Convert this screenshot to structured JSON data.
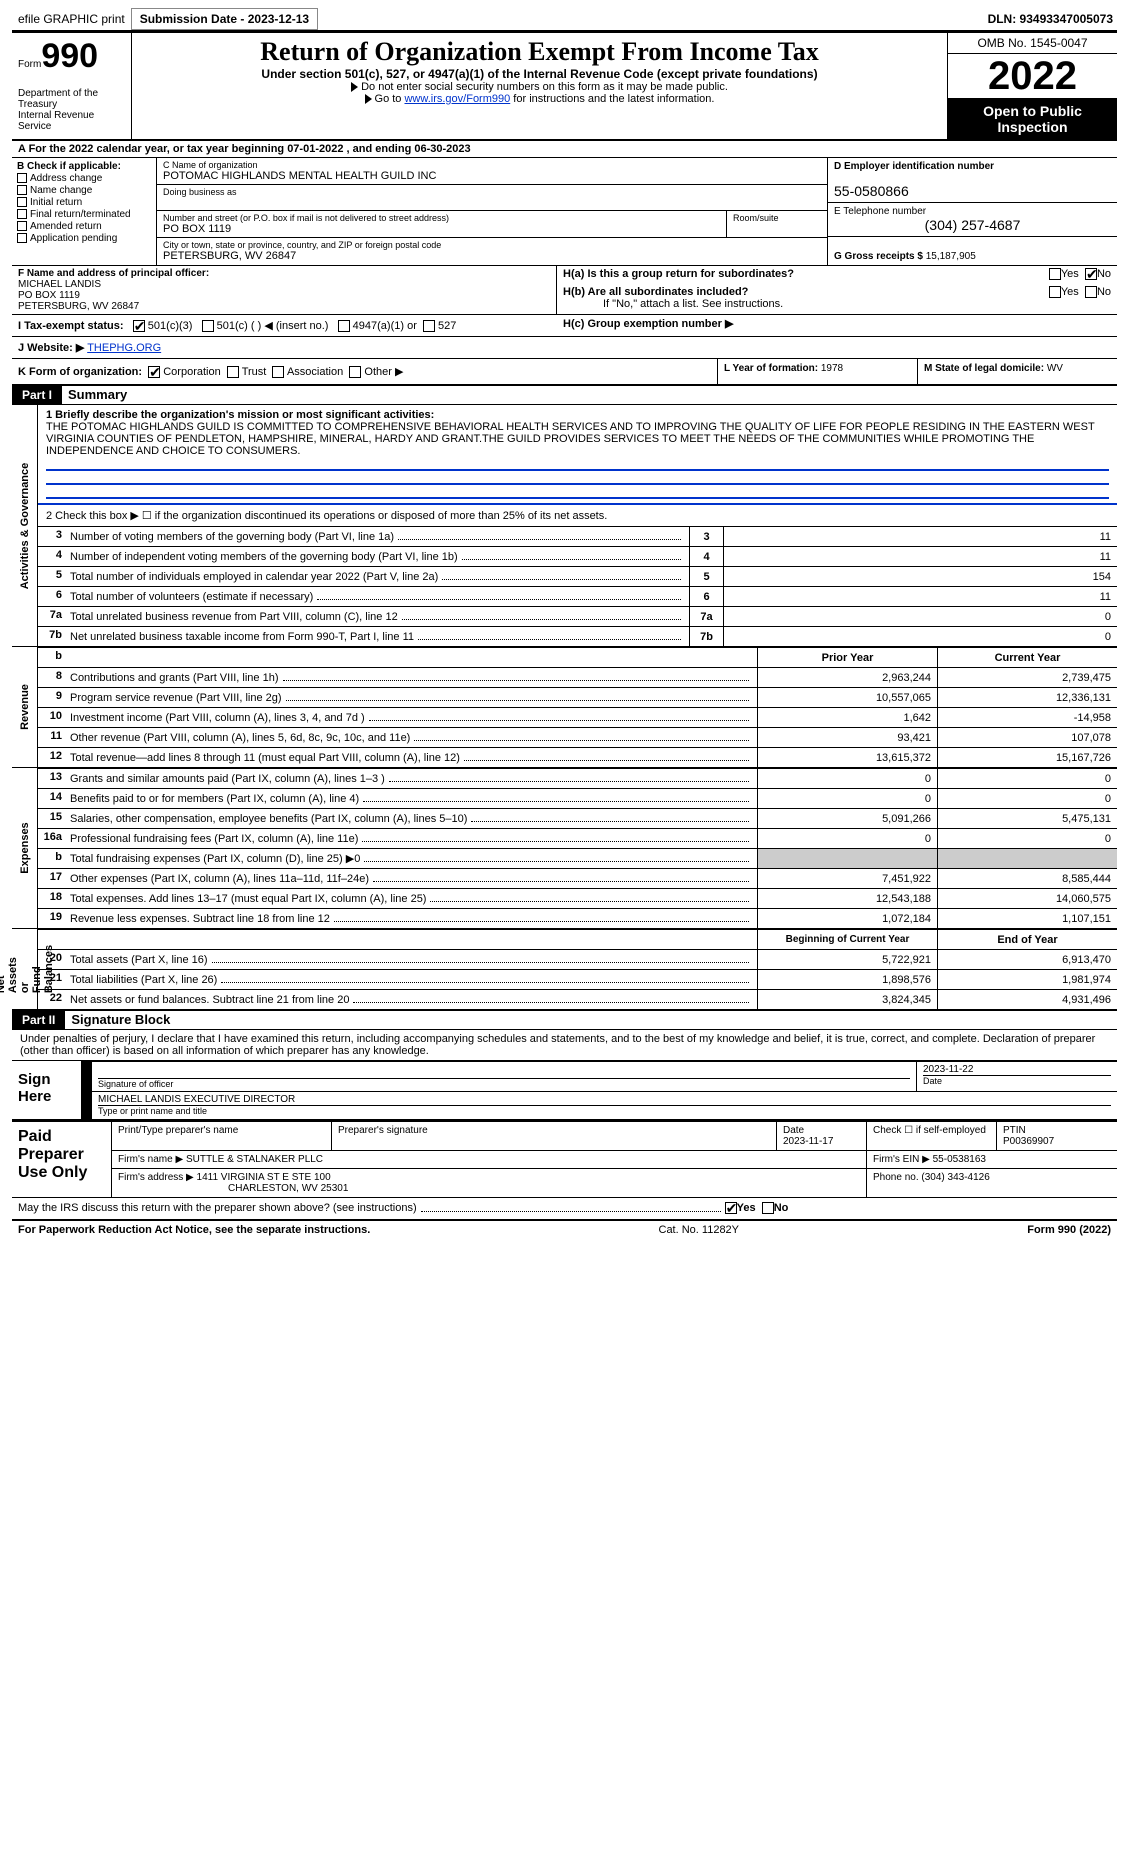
{
  "topbar": {
    "efile": "efile GRAPHIC print",
    "submission": "Submission Date - 2023-12-13",
    "dln": "DLN: 93493347005073"
  },
  "header": {
    "form_label": "Form",
    "form_num": "990",
    "title": "Return of Organization Exempt From Income Tax",
    "subtitle": "Under section 501(c), 527, or 4947(a)(1) of the Internal Revenue Code (except private foundations)",
    "note1": "Do not enter social security numbers on this form as it may be made public.",
    "note2_pre": "Go to ",
    "note2_link": "www.irs.gov/Form990",
    "note2_post": " for instructions and the latest information.",
    "dept": "Department of the Treasury\nInternal Revenue Service",
    "omb": "OMB No. 1545-0047",
    "year": "2022",
    "open": "Open to Public Inspection"
  },
  "rowA": "A For the 2022 calendar year, or tax year beginning 07-01-2022    , and ending 06-30-2023",
  "checkB": {
    "label": "B Check if applicable:",
    "items": [
      "Address change",
      "Name change",
      "Initial return",
      "Final return/terminated",
      "Amended return",
      "Application pending"
    ]
  },
  "blockC": {
    "name_lab": "C Name of organization",
    "name": "POTOMAC HIGHLANDS MENTAL HEALTH GUILD INC",
    "dba_lab": "Doing business as",
    "dba": "",
    "addr_lab": "Number and street (or P.O. box if mail is not delivered to street address)",
    "room_lab": "Room/suite",
    "addr": "PO BOX 1119",
    "city_lab": "City or town, state or province, country, and ZIP or foreign postal code",
    "city": "PETERSBURG, WV  26847"
  },
  "blockD": {
    "ein_lab": "D Employer identification number",
    "ein": "55-0580866",
    "tel_lab": "E Telephone number",
    "tel": "(304) 257-4687",
    "gross_lab": "G Gross receipts $",
    "gross": "15,187,905"
  },
  "blockF": {
    "lab": "F  Name and address of principal officer:",
    "name": "MICHAEL LANDIS",
    "addr1": "PO BOX 1119",
    "addr2": "PETERSBURG, WV  26847"
  },
  "blockH": {
    "ha": "H(a)  Is this a group return for subordinates?",
    "hb": "H(b)  Are all subordinates included?",
    "hb_note": "If \"No,\" attach a list. See instructions.",
    "hc": "H(c)  Group exemption number ▶",
    "yes": "Yes",
    "no": "No"
  },
  "rowI": {
    "lab": "I  Tax-exempt status:",
    "o1": "501(c)(3)",
    "o2": "501(c) (  ) ◀ (insert no.)",
    "o3": "4947(a)(1) or",
    "o4": "527"
  },
  "rowJ": {
    "lab": "J  Website: ▶",
    "val": "THEPHG.ORG"
  },
  "rowK": {
    "lab": "K Form of organization:",
    "o1": "Corporation",
    "o2": "Trust",
    "o3": "Association",
    "o4": "Other ▶"
  },
  "rowL": {
    "lab": "L Year of formation:",
    "val": "1978"
  },
  "rowM": {
    "lab": "M State of legal domicile:",
    "val": "WV"
  },
  "part1": {
    "tab": "Part I",
    "title": "Summary"
  },
  "mission": {
    "lab": "1  Briefly describe the organization's mission or most significant activities:",
    "text": "THE POTOMAC HIGHLANDS GUILD IS COMMITTED TO COMPREHENSIVE BEHAVIORAL HEALTH SERVICES AND TO IMPROVING THE QUALITY OF LIFE FOR PEOPLE RESIDING IN THE EASTERN WEST VIRGINIA COUNTIES OF PENDLETON, HAMPSHIRE, MINERAL, HARDY AND GRANT.THE GUILD PROVIDES SERVICES TO MEET THE NEEDS OF THE COMMUNITIES WHILE PROMOTING THE INDEPENDENCE AND CHOICE TO CONSUMERS."
  },
  "line2": "2    Check this box ▶ ☐  if the organization discontinued its operations or disposed of more than 25% of its net assets.",
  "gov_lines": [
    {
      "n": "3",
      "t": "Number of voting members of the governing body (Part VI, line 1a)",
      "box": "3",
      "v": "11"
    },
    {
      "n": "4",
      "t": "Number of independent voting members of the governing body (Part VI, line 1b)",
      "box": "4",
      "v": "11"
    },
    {
      "n": "5",
      "t": "Total number of individuals employed in calendar year 2022 (Part V, line 2a)",
      "box": "5",
      "v": "154"
    },
    {
      "n": "6",
      "t": "Total number of volunteers (estimate if necessary)",
      "box": "6",
      "v": "11"
    },
    {
      "n": "7a",
      "t": "Total unrelated business revenue from Part VIII, column (C), line 12",
      "box": "7a",
      "v": "0"
    },
    {
      "n": "7b",
      "t": "Net unrelated business taxable income from Form 990-T, Part I, line 11",
      "box": "7b",
      "v": "0"
    }
  ],
  "col_hdr": {
    "b": "b",
    "py": "Prior Year",
    "cy": "Current Year"
  },
  "rev_lines": [
    {
      "n": "8",
      "t": "Contributions and grants (Part VIII, line 1h)",
      "py": "2,963,244",
      "cy": "2,739,475"
    },
    {
      "n": "9",
      "t": "Program service revenue (Part VIII, line 2g)",
      "py": "10,557,065",
      "cy": "12,336,131"
    },
    {
      "n": "10",
      "t": "Investment income (Part VIII, column (A), lines 3, 4, and 7d )",
      "py": "1,642",
      "cy": "-14,958"
    },
    {
      "n": "11",
      "t": "Other revenue (Part VIII, column (A), lines 5, 6d, 8c, 9c, 10c, and 11e)",
      "py": "93,421",
      "cy": "107,078"
    },
    {
      "n": "12",
      "t": "Total revenue—add lines 8 through 11 (must equal Part VIII, column (A), line 12)",
      "py": "13,615,372",
      "cy": "15,167,726"
    }
  ],
  "exp_lines": [
    {
      "n": "13",
      "t": "Grants and similar amounts paid (Part IX, column (A), lines 1–3 )",
      "py": "0",
      "cy": "0"
    },
    {
      "n": "14",
      "t": "Benefits paid to or for members (Part IX, column (A), line 4)",
      "py": "0",
      "cy": "0"
    },
    {
      "n": "15",
      "t": "Salaries, other compensation, employee benefits (Part IX, column (A), lines 5–10)",
      "py": "5,091,266",
      "cy": "5,475,131"
    },
    {
      "n": "16a",
      "t": "Professional fundraising fees (Part IX, column (A), line 11e)",
      "py": "0",
      "cy": "0"
    },
    {
      "n": "b",
      "t": "Total fundraising expenses (Part IX, column (D), line 25) ▶0",
      "py": "",
      "cy": "",
      "shade": true
    },
    {
      "n": "17",
      "t": "Other expenses (Part IX, column (A), lines 11a–11d, 11f–24e)",
      "py": "7,451,922",
      "cy": "8,585,444"
    },
    {
      "n": "18",
      "t": "Total expenses. Add lines 13–17 (must equal Part IX, column (A), line 25)",
      "py": "12,543,188",
      "cy": "14,060,575"
    },
    {
      "n": "19",
      "t": "Revenue less expenses. Subtract line 18 from line 12",
      "py": "1,072,184",
      "cy": "1,107,151"
    }
  ],
  "na_hdr": {
    "py": "Beginning of Current Year",
    "cy": "End of Year"
  },
  "na_lines": [
    {
      "n": "20",
      "t": "Total assets (Part X, line 16)",
      "py": "5,722,921",
      "cy": "6,913,470"
    },
    {
      "n": "21",
      "t": "Total liabilities (Part X, line 26)",
      "py": "1,898,576",
      "cy": "1,981,974"
    },
    {
      "n": "22",
      "t": "Net assets or fund balances. Subtract line 21 from line 20",
      "py": "3,824,345",
      "cy": "4,931,496"
    }
  ],
  "vtabs": {
    "gov": "Activities & Governance",
    "rev": "Revenue",
    "exp": "Expenses",
    "na": "Net Assets or\nFund Balances"
  },
  "part2": {
    "tab": "Part II",
    "title": "Signature Block"
  },
  "perjury": "Under penalties of perjury, I declare that I have examined this return, including accompanying schedules and statements, and to the best of my knowledge and belief, it is true, correct, and complete. Declaration of preparer (other than officer) is based on all information of which preparer has any knowledge.",
  "sign": {
    "here": "Sign Here",
    "sig_lab": "Signature of officer",
    "date": "2023-11-22",
    "date_lab": "Date",
    "name": "MICHAEL LANDIS  EXECUTIVE DIRECTOR",
    "name_lab": "Type or print name and title"
  },
  "paid": {
    "lab": "Paid Preparer Use Only",
    "h_name": "Print/Type preparer's name",
    "h_sig": "Preparer's signature",
    "h_date": "Date",
    "date": "2023-11-17",
    "h_chk": "Check ☐ if self-employed",
    "h_ptin": "PTIN",
    "ptin": "P00369907",
    "firm_lab": "Firm's name    ▶",
    "firm": "SUTTLE & STALNAKER PLLC",
    "ein_lab": "Firm's EIN ▶",
    "ein": "55-0538163",
    "addr_lab": "Firm's address ▶",
    "addr1": "1411 VIRGINIA ST E STE 100",
    "addr2": "CHARLESTON, WV  25301",
    "phone_lab": "Phone no.",
    "phone": "(304) 343-4126"
  },
  "mayirs": {
    "text": "May the IRS discuss this return with the preparer shown above? (see instructions)",
    "yes": "Yes",
    "no": "No"
  },
  "footer": {
    "left": "For Paperwork Reduction Act Notice, see the separate instructions.",
    "mid": "Cat. No. 11282Y",
    "right": "Form 990 (2022)"
  },
  "colors": {
    "link": "#0033cc",
    "shade": "#cccccc",
    "black": "#000000"
  }
}
